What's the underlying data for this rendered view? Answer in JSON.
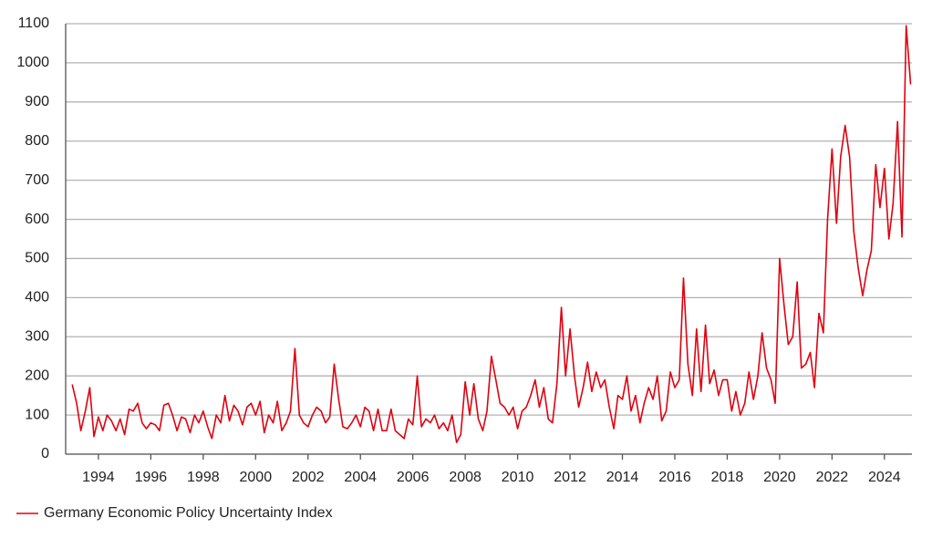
{
  "chart_data": {
    "type": "line",
    "x": [
      1993,
      1993.17,
      1993.33,
      1993.5,
      1993.67,
      1993.83,
      1994,
      1994.17,
      1994.33,
      1994.5,
      1994.67,
      1994.83,
      1995,
      1995.17,
      1995.33,
      1995.5,
      1995.67,
      1995.83,
      1996,
      1996.17,
      1996.33,
      1996.5,
      1996.67,
      1996.83,
      1997,
      1997.17,
      1997.33,
      1997.5,
      1997.67,
      1997.83,
      1998,
      1998.17,
      1998.33,
      1998.5,
      1998.67,
      1998.83,
      1999,
      1999.17,
      1999.33,
      1999.5,
      1999.67,
      1999.83,
      2000,
      2000.17,
      2000.33,
      2000.5,
      2000.67,
      2000.83,
      2001,
      2001.17,
      2001.33,
      2001.5,
      2001.67,
      2001.83,
      2002,
      2002.17,
      2002.33,
      2002.5,
      2002.67,
      2002.83,
      2003,
      2003.17,
      2003.33,
      2003.5,
      2003.67,
      2003.83,
      2004,
      2004.17,
      2004.33,
      2004.5,
      2004.67,
      2004.83,
      2005,
      2005.17,
      2005.33,
      2005.5,
      2005.67,
      2005.83,
      2006,
      2006.17,
      2006.33,
      2006.5,
      2006.67,
      2006.83,
      2007,
      2007.17,
      2007.33,
      2007.5,
      2007.67,
      2007.83,
      2008,
      2008.17,
      2008.33,
      2008.5,
      2008.67,
      2008.83,
      2009,
      2009.17,
      2009.33,
      2009.5,
      2009.67,
      2009.83,
      2010,
      2010.17,
      2010.33,
      2010.5,
      2010.67,
      2010.83,
      2011,
      2011.17,
      2011.33,
      2011.5,
      2011.67,
      2011.83,
      2012,
      2012.17,
      2012.33,
      2012.5,
      2012.67,
      2012.83,
      2013,
      2013.17,
      2013.33,
      2013.5,
      2013.67,
      2013.83,
      2014,
      2014.17,
      2014.33,
      2014.5,
      2014.67,
      2014.83,
      2015,
      2015.17,
      2015.33,
      2015.5,
      2015.67,
      2015.83,
      2016,
      2016.17,
      2016.33,
      2016.5,
      2016.67,
      2016.83,
      2017,
      2017.17,
      2017.33,
      2017.5,
      2017.67,
      2017.83,
      2018,
      2018.17,
      2018.33,
      2018.5,
      2018.67,
      2018.83,
      2019,
      2019.17,
      2019.33,
      2019.5,
      2019.67,
      2019.83,
      2020,
      2020.17,
      2020.33,
      2020.5,
      2020.67,
      2020.83,
      2021,
      2021.17,
      2021.33,
      2021.5,
      2021.67,
      2021.83,
      2022,
      2022.17,
      2022.33,
      2022.5,
      2022.67,
      2022.83,
      2023,
      2023.17,
      2023.33,
      2023.5,
      2023.67,
      2023.83,
      2024,
      2024.17,
      2024.33,
      2024.5,
      2024.67,
      2024.83,
      2025
    ],
    "series": [
      {
        "name": "Germany Economic Policy Uncertainty Index",
        "color": "#e0000f",
        "values": [
          178,
          130,
          60,
          110,
          170,
          45,
          95,
          60,
          100,
          85,
          60,
          90,
          50,
          115,
          110,
          130,
          80,
          65,
          80,
          75,
          60,
          125,
          130,
          100,
          60,
          95,
          90,
          55,
          100,
          80,
          110,
          70,
          40,
          100,
          80,
          150,
          85,
          125,
          110,
          75,
          120,
          130,
          100,
          135,
          55,
          100,
          80,
          135,
          60,
          80,
          110,
          270,
          100,
          80,
          70,
          100,
          120,
          110,
          80,
          95,
          230,
          140,
          70,
          65,
          80,
          100,
          70,
          120,
          110,
          60,
          115,
          60,
          60,
          115,
          60,
          50,
          40,
          90,
          75,
          200,
          70,
          90,
          80,
          100,
          65,
          80,
          60,
          100,
          30,
          50,
          185,
          100,
          180,
          90,
          60,
          110,
          250,
          190,
          130,
          120,
          100,
          120,
          65,
          110,
          120,
          150,
          190,
          120,
          170,
          90,
          80,
          180,
          375,
          200,
          320,
          200,
          120,
          170,
          235,
          160,
          210,
          170,
          190,
          120,
          65,
          150,
          140,
          200,
          110,
          150,
          80,
          130,
          170,
          140,
          200,
          85,
          110,
          210,
          170,
          190,
          450,
          230,
          150,
          320,
          160,
          330,
          180,
          215,
          150,
          190,
          190,
          110,
          160,
          100,
          130,
          210,
          140,
          200,
          310,
          220,
          190,
          130,
          500,
          380,
          280,
          300,
          440,
          220,
          230,
          260,
          170,
          360,
          310,
          600,
          780,
          590,
          760,
          840,
          760,
          570,
          475,
          405,
          470,
          520,
          740,
          630,
          730,
          550,
          640,
          850,
          555,
          1095,
          945
        ]
      }
    ],
    "xlim": [
      1992.75,
      2025.05
    ],
    "xticks": [
      1994,
      1996,
      1998,
      2000,
      2002,
      2004,
      2006,
      2008,
      2010,
      2012,
      2014,
      2016,
      2018,
      2020,
      2022,
      2024
    ],
    "ylim": [
      0,
      1100
    ],
    "yticks": [
      0,
      100,
      200,
      300,
      400,
      500,
      600,
      700,
      800,
      900,
      1000,
      1100
    ],
    "grid": true,
    "legend": "bottom-left"
  }
}
